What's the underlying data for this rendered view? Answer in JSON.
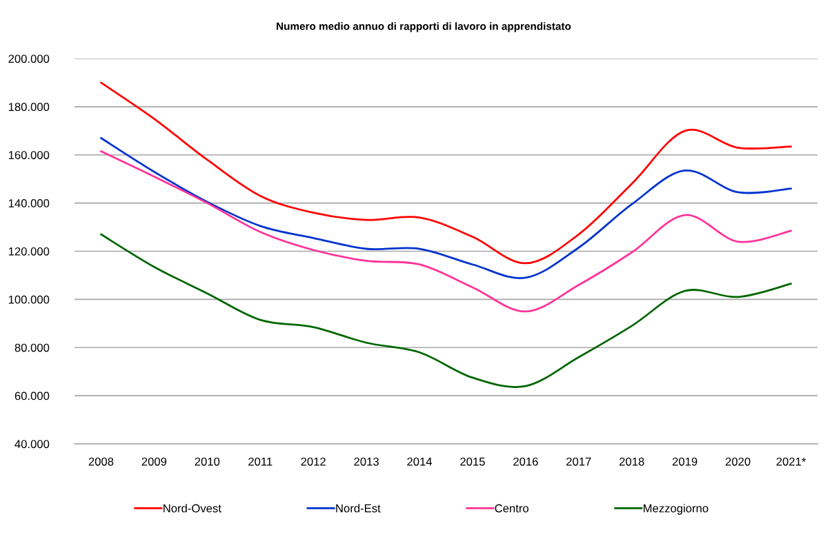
{
  "chart_data": {
    "type": "line",
    "title": "Numero medio annuo di rapporti di lavoro in apprendistato",
    "categories": [
      "2008",
      "2009",
      "2010",
      "2011",
      "2012",
      "2013",
      "2014",
      "2015",
      "2016",
      "2017",
      "2018",
      "2019",
      "2020",
      "2021*"
    ],
    "series": [
      {
        "name": "Nord-Ovest",
        "color": "#ff0000",
        "values": [
          190000,
          175000,
          158000,
          143000,
          136000,
          133000,
          134000,
          126000,
          115000,
          127000,
          148000,
          170000,
          163000,
          163500
        ]
      },
      {
        "name": "Nord-Est",
        "color": "#0033cc",
        "values": [
          167000,
          153000,
          140500,
          130500,
          125500,
          121000,
          121000,
          114500,
          109000,
          121500,
          139500,
          153500,
          144500,
          146000
        ]
      },
      {
        "name": "Centro",
        "color": "#ff3399",
        "values": [
          161500,
          151000,
          140000,
          128000,
          120500,
          116000,
          114500,
          105000,
          95000,
          106000,
          119500,
          135000,
          124000,
          128500
        ]
      },
      {
        "name": "Mezzogiorno",
        "color": "#006600",
        "values": [
          127000,
          113500,
          102500,
          91500,
          88500,
          82000,
          78000,
          67500,
          64000,
          76000,
          89000,
          103500,
          101000,
          106500
        ]
      }
    ],
    "ylim": [
      40000,
      200000
    ],
    "yticks": [
      {
        "value": 40000,
        "label": "40.000"
      },
      {
        "value": 60000,
        "label": "60.000"
      },
      {
        "value": 80000,
        "label": "80.000"
      },
      {
        "value": 100000,
        "label": "100.000"
      },
      {
        "value": 120000,
        "label": "120.000"
      },
      {
        "value": 140000,
        "label": "140.000"
      },
      {
        "value": 160000,
        "label": "160.000"
      },
      {
        "value": 180000,
        "label": "180.000"
      },
      {
        "value": 200000,
        "label": "200.000"
      }
    ],
    "grid": "y",
    "legend": "bottom",
    "line_style": "solid"
  }
}
